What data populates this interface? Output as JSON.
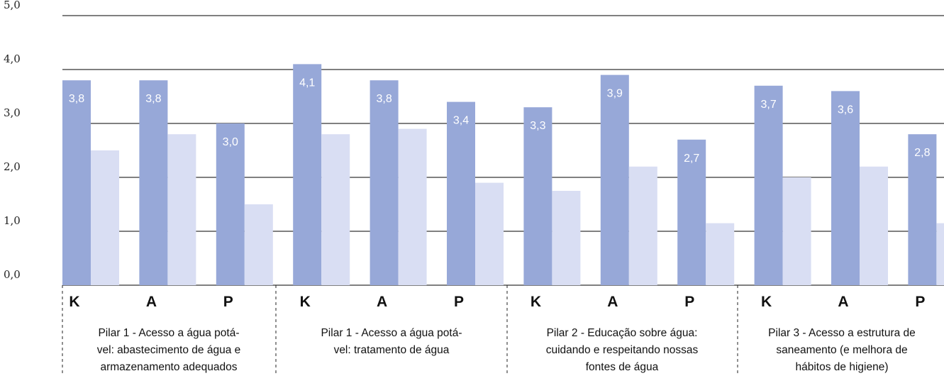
{
  "chart_data": {
    "type": "bar",
    "title": "",
    "xlabel": "",
    "ylabel": "",
    "ylim": [
      0,
      5
    ],
    "yticks": [
      "0,0",
      "1,0",
      "2,0",
      "3,0",
      "4,0",
      "5,0"
    ],
    "grid": true,
    "legend": "none",
    "categories": [
      "K",
      "A",
      "P",
      "K",
      "A",
      "P",
      "K",
      "A",
      "P",
      "K",
      "A",
      "P"
    ],
    "groups": [
      "Pilar 1 - Acesso a água potá-\nvel: abastecimento de água e\narmazenamento adequados",
      "Pilar 1 - Acesso a água potá-\nvel: tratamento de água",
      "Pilar 2 - Educação sobre água:\ncuidando e respeitando nossas\nfontes de água",
      "Pilar 3 - Acesso a estrutura de\nsaneamento (e melhora de\nhábitos de higiene)"
    ],
    "series": [
      {
        "color": "#97a8d8",
        "values": [
          3.8,
          3.8,
          3.0,
          4.1,
          3.8,
          3.4,
          3.3,
          3.9,
          2.7,
          3.7,
          3.6,
          2.8
        ],
        "labels": [
          "3,8",
          "3,8",
          "3,0",
          "4,1",
          "3,8",
          "3,4",
          "3,3",
          "3,9",
          "2,7",
          "3,7",
          "3,6",
          "2,8"
        ]
      },
      {
        "color": "#d9def3",
        "values": [
          2.5,
          2.8,
          1.5,
          2.8,
          2.9,
          1.9,
          1.75,
          2.2,
          1.15,
          2.0,
          2.2,
          1.15
        ]
      }
    ]
  }
}
